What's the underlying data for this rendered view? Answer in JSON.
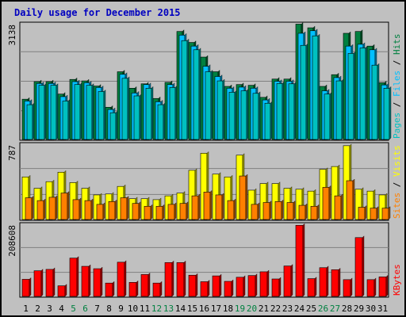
{
  "chart_data": [
    {
      "type": "bar",
      "title": "Daily usage for December 2015",
      "ymax_label": "3138",
      "ylim": [
        0,
        3138
      ],
      "legend": [
        "Pages",
        "/",
        "Files",
        "/",
        "Hits"
      ],
      "colors": {
        "Pages": "#00c0c0",
        "Files": "#00c0ff",
        "Hits": "#008040",
        "slash": "#000000"
      },
      "categories": [
        "1",
        "2",
        "3",
        "4",
        "5",
        "6",
        "7",
        "8",
        "9",
        "10",
        "11",
        "12",
        "13",
        "14",
        "15",
        "16",
        "17",
        "18",
        "19",
        "20",
        "21",
        "22",
        "23",
        "24",
        "25",
        "26",
        "27",
        "28",
        "29",
        "30",
        "31"
      ],
      "weekend_days": [
        "5",
        "6",
        "12",
        "13",
        "19",
        "20",
        "26",
        "27"
      ],
      "series": [
        {
          "name": "Hits",
          "values": [
            1100,
            1580,
            1580,
            1240,
            1640,
            1600,
            1460,
            880,
            1850,
            1400,
            1520,
            1120,
            1560,
            2950,
            2650,
            2250,
            1850,
            1450,
            1500,
            1480,
            1150,
            1650,
            1650,
            3150,
            3050,
            1450,
            1770,
            2900,
            2950,
            2550,
            1550
          ]
        },
        {
          "name": "Files",
          "values": [
            1050,
            1530,
            1530,
            1170,
            1580,
            1550,
            1420,
            820,
            1780,
            1270,
            1500,
            1030,
            1500,
            2850,
            2550,
            2000,
            1720,
            1400,
            1430,
            1400,
            1080,
            1590,
            1590,
            2900,
            2970,
            1330,
            1690,
            2550,
            2600,
            2450,
            1490
          ]
        },
        {
          "name": "Pages",
          "values": [
            950,
            1480,
            1480,
            1050,
            1500,
            1480,
            1310,
            730,
            1670,
            1190,
            1400,
            950,
            1420,
            2700,
            2450,
            1850,
            1600,
            1290,
            1330,
            1260,
            990,
            1530,
            1520,
            2570,
            2830,
            1240,
            1600,
            2350,
            2500,
            2030,
            1400
          ]
        }
      ]
    },
    {
      "type": "bar",
      "ymax_label": "787",
      "ylim": [
        0,
        787
      ],
      "legend": [
        "Sites",
        "/",
        "Visits"
      ],
      "colors": {
        "Visits": "#ffff00",
        "Sites": "#ff8000",
        "slash": "#000000"
      },
      "categories": [
        "1",
        "2",
        "3",
        "4",
        "5",
        "6",
        "7",
        "8",
        "9",
        "10",
        "11",
        "12",
        "13",
        "14",
        "15",
        "16",
        "17",
        "18",
        "19",
        "20",
        "21",
        "22",
        "23",
        "24",
        "25",
        "26",
        "27",
        "28",
        "29",
        "30",
        "31"
      ],
      "series": [
        {
          "name": "Visits",
          "values": [
            450,
            330,
            400,
            500,
            390,
            330,
            260,
            270,
            350,
            220,
            220,
            210,
            250,
            280,
            520,
            700,
            480,
            450,
            680,
            310,
            380,
            380,
            330,
            320,
            300,
            530,
            560,
            780,
            320,
            300,
            260
          ]
        },
        {
          "name": "Sites",
          "values": [
            230,
            200,
            235,
            280,
            210,
            200,
            160,
            190,
            230,
            170,
            140,
            140,
            160,
            170,
            250,
            290,
            260,
            200,
            460,
            160,
            180,
            190,
            180,
            150,
            140,
            340,
            250,
            410,
            130,
            120,
            120
          ]
        }
      ]
    },
    {
      "type": "bar",
      "ymax_label": "208608",
      "ylim": [
        0,
        208608
      ],
      "legend": [
        "KBytes"
      ],
      "colors": {
        "KBytes": "#ff0000"
      },
      "categories": [
        "1",
        "2",
        "3",
        "4",
        "5",
        "6",
        "7",
        "8",
        "9",
        "10",
        "11",
        "12",
        "13",
        "14",
        "15",
        "16",
        "17",
        "18",
        "19",
        "20",
        "21",
        "22",
        "23",
        "24",
        "25",
        "26",
        "27",
        "28",
        "29",
        "30",
        "31"
      ],
      "series": [
        {
          "name": "KBytes",
          "values": [
            50000,
            75000,
            79000,
            31000,
            112000,
            88000,
            81000,
            39000,
            100000,
            41000,
            64000,
            39000,
            99000,
            99000,
            62000,
            43000,
            60000,
            44000,
            56000,
            61000,
            72000,
            51000,
            89000,
            208000,
            52000,
            84000,
            78000,
            49000,
            172000,
            49000,
            57000
          ]
        }
      ]
    }
  ]
}
